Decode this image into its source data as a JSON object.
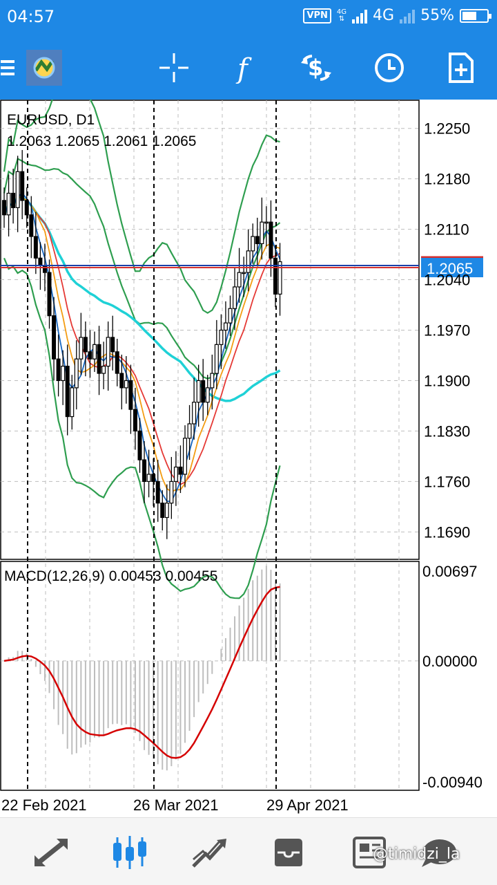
{
  "status_bar": {
    "time": "04:57",
    "vpn": "VPN",
    "network": "4G",
    "battery": "55%"
  },
  "toolbar": {
    "icons": [
      "menu-icon",
      "metatrader-logo",
      "crosshair-icon",
      "indicators-icon",
      "trade-icon",
      "timeframe-icon",
      "add-chart-icon"
    ]
  },
  "chart": {
    "symbol_title": "EURUSD, D1",
    "ohlc": "1.2063 1.2065 1.2061 1.2065",
    "current_price": "1.2065",
    "price_ticks": [
      "1.2250",
      "1.2180",
      "1.2110",
      "1.2040",
      "1.1970",
      "1.1900",
      "1.1830",
      "1.1760",
      "1.1690"
    ],
    "macd_label": "MACD(12,26,9) 0.00453 0.00455",
    "macd_ticks": [
      "0.00697",
      "0.00000",
      "-0.00940"
    ],
    "date_labels": [
      "22 Feb 2021",
      "26 Mar 2021",
      "29 Apr 2021"
    ],
    "colors": {
      "bull_bear": "#000000",
      "bb": "#2e9e4f",
      "ma_fast": "#1565c0",
      "ma_mid": "#f39c12",
      "ma_slow": "#e53935",
      "ma_long": "#1fd1d6",
      "bid_line": "#1a3fa8",
      "ask_line": "#d32f2f",
      "macd_signal": "#d50000",
      "macd_hist": "#bdbdbd",
      "price_tag": "#1e88e5"
    }
  },
  "chart_data": {
    "type": "candlestick",
    "title": "EURUSD, D1",
    "ylim": [
      1.165,
      1.229
    ],
    "price_series_approx": [
      1.213,
      1.216,
      1.214,
      1.219,
      1.215,
      1.213,
      1.21,
      1.207,
      1.206,
      1.205,
      1.199,
      1.193,
      1.19,
      1.192,
      1.185,
      1.189,
      1.193,
      1.196,
      1.194,
      1.193,
      1.195,
      1.191,
      1.192,
      1.196,
      1.194,
      1.191,
      1.189,
      1.19,
      1.186,
      1.183,
      1.179,
      1.176,
      1.177,
      1.176,
      1.173,
      1.171,
      1.173,
      1.176,
      1.178,
      1.177,
      1.182,
      1.184,
      1.187,
      1.19,
      1.187,
      1.189,
      1.191,
      1.195,
      1.197,
      1.198,
      1.2,
      1.203,
      1.205,
      1.205,
      1.208,
      1.21,
      1.209,
      1.212,
      1.212,
      1.207,
      1.202,
      1.2065
    ],
    "macd": {
      "ylim": [
        -0.0094,
        0.00697
      ],
      "value": 0.00453,
      "signal": 0.00455
    }
  },
  "bottom_nav": {
    "icons": [
      "quotes-icon",
      "chart-icon",
      "trade-icon",
      "history-icon",
      "news-icon"
    ],
    "watermark": "@timidzi_la"
  }
}
